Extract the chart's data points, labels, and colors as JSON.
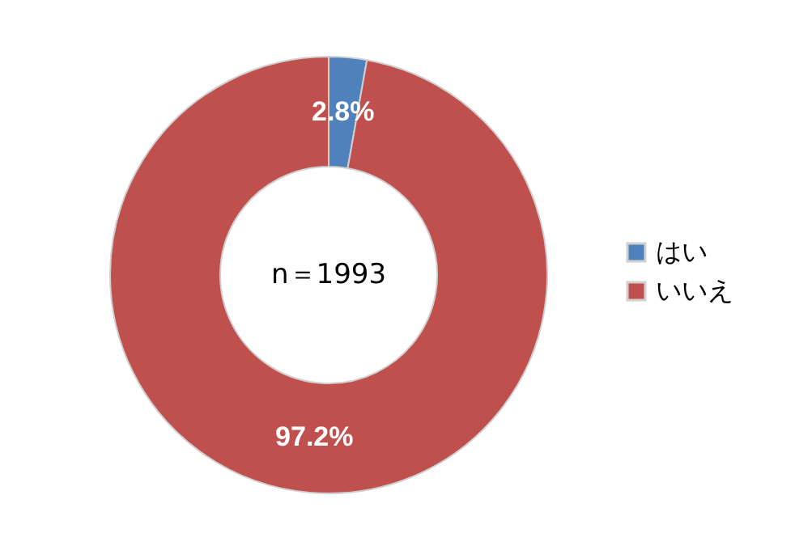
{
  "chart_data": {
    "type": "donut",
    "categories": [
      "はい",
      "いいえ"
    ],
    "values": [
      2.8,
      97.2
    ],
    "colors": [
      "#4f81bd",
      "#c0504d"
    ],
    "value_labels": [
      "2.8%",
      "97.2%"
    ],
    "annotations": [
      "n＝1993"
    ],
    "legend": "right"
  }
}
